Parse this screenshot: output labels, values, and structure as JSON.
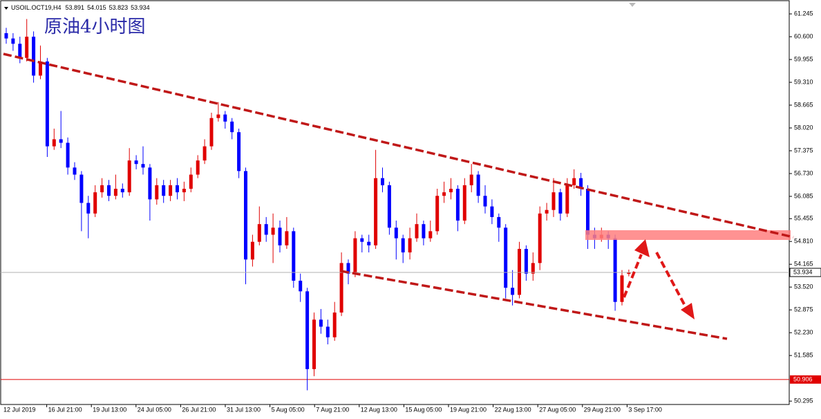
{
  "chart_data": {
    "type": "candlestick",
    "symbol": "USOIL.OCT19,H4",
    "title": "原油4小时图",
    "up_color": "#e00000",
    "down_color": "#0000ff",
    "ylim": [
      50.2,
      61.54
    ],
    "yticks": [
      61.245,
      {
        "value": 60.6,
        "label": "60.600"
      },
      59.955,
      {
        "value": 59.31,
        "label": "59.310"
      },
      58.665,
      {
        "value": 58.02,
        "label": "58.020"
      },
      57.375,
      {
        "value": 56.73,
        "label": "56.730"
      },
      56.085,
      55.455,
      {
        "value": 54.81,
        "label": "54.810"
      },
      54.165,
      {
        "value": 53.52,
        "label": "53.520"
      },
      52.875,
      {
        "value": 52.23,
        "label": "52.230"
      },
      51.585,
      50.295
    ],
    "level": 50.906,
    "x_labels": [
      "12 Jul 2019",
      "16 Jul 21:00",
      "19 Jul 13:00",
      "24 Jul 05:00",
      "26 Jul 21:00",
      "31 Jul 13:00",
      "5 Aug 05:00",
      "7 Aug 21:00",
      "12 Aug 13:00",
      "15 Aug 05:00",
      "19 Aug 21:00",
      "22 Aug 13:00",
      "27 Aug 05:00",
      "29 Aug 21:00",
      "3 Sep 17:00"
    ],
    "open": [
      60.7,
      60.55,
      60.4,
      60.0,
      60.6,
      59.5,
      59.9,
      57.5,
      57.7,
      57.6,
      56.9,
      56.7,
      55.9,
      55.6,
      56.2,
      56.4,
      56.1,
      56.3,
      56.2,
      57.1,
      57.0,
      56.9,
      56.0,
      56.4,
      56.1,
      56.4,
      56.2,
      56.3,
      56.7,
      57.1,
      57.5,
      58.3,
      58.4,
      58.2,
      57.9,
      56.8,
      54.3,
      54.8,
      55.3,
      55.0,
      55.2,
      54.7,
      55.1,
      53.7,
      53.4,
      51.2,
      52.6,
      52.4,
      52.1,
      52.8,
      54.2,
      53.9,
      54.9,
      54.8,
      54.7,
      56.6,
      56.4,
      55.2,
      54.9,
      54.5,
      54.9,
      55.3,
      54.9,
      55.1,
      56.1,
      56.2,
      56.3,
      55.4,
      56.4,
      56.7,
      56.1,
      55.8,
      55.5,
      55.2,
      53.5,
      53.3,
      54.6,
      53.9,
      54.2,
      55.6,
      55.7,
      56.2,
      55.6,
      56.4,
      56.6,
      56.3,
      55.0,
      54.9,
      55.0,
      54.9,
      53.1,
      53.891
    ],
    "high": [
      60.85,
      60.7,
      60.6,
      61.1,
      60.75,
      60.35,
      60.0,
      58.0,
      58.5,
      57.75,
      57.05,
      56.8,
      56.1,
      56.4,
      56.6,
      56.55,
      56.7,
      56.45,
      57.45,
      57.25,
      57.5,
      57.0,
      56.6,
      56.55,
      56.55,
      56.6,
      56.5,
      56.9,
      57.25,
      57.7,
      58.45,
      58.75,
      58.5,
      58.3,
      58.0,
      56.9,
      55.0,
      55.8,
      55.5,
      55.6,
      55.4,
      55.5,
      55.2,
      53.9,
      53.5,
      52.8,
      52.9,
      52.6,
      53.1,
      54.5,
      54.3,
      55.1,
      55.0,
      55.0,
      57.4,
      56.9,
      56.5,
      55.4,
      55.0,
      55.2,
      55.6,
      55.4,
      55.4,
      56.3,
      56.5,
      56.6,
      56.4,
      56.6,
      57.0,
      56.8,
      56.4,
      56.0,
      55.6,
      55.3,
      54.0,
      54.8,
      54.7,
      54.5,
      55.8,
      55.9,
      56.6,
      56.3,
      56.6,
      56.85,
      56.75,
      56.4,
      55.2,
      55.2,
      55.1,
      55.0,
      54.0,
      54.015
    ],
    "low": [
      60.4,
      60.2,
      59.85,
      59.9,
      59.3,
      59.4,
      57.2,
      57.4,
      57.45,
      56.7,
      56.55,
      55.1,
      54.9,
      55.5,
      56.05,
      55.95,
      56.0,
      56.05,
      56.1,
      56.85,
      56.7,
      55.4,
      55.85,
      55.9,
      55.95,
      56.0,
      55.95,
      56.2,
      56.6,
      57.0,
      57.4,
      58.2,
      58.0,
      57.7,
      56.6,
      53.6,
      54.1,
      54.7,
      54.8,
      54.2,
      54.5,
      54.6,
      53.5,
      53.1,
      50.6,
      51.0,
      52.2,
      51.9,
      52.0,
      52.7,
      53.6,
      53.8,
      54.5,
      54.5,
      54.6,
      56.2,
      55.0,
      54.3,
      54.2,
      54.3,
      54.8,
      54.7,
      54.8,
      55.0,
      55.9,
      56.0,
      55.1,
      55.3,
      56.2,
      55.9,
      55.6,
      55.3,
      54.8,
      53.2,
      53.0,
      53.2,
      53.7,
      53.7,
      54.0,
      55.4,
      55.5,
      55.4,
      55.5,
      56.3,
      56.1,
      54.6,
      54.6,
      54.8,
      54.6,
      52.85,
      53.0,
      53.823
    ],
    "close": [
      60.55,
      60.4,
      60.0,
      60.6,
      59.5,
      59.9,
      57.5,
      57.7,
      57.6,
      56.9,
      56.7,
      55.9,
      55.6,
      56.2,
      56.4,
      56.1,
      56.3,
      56.2,
      57.1,
      57.0,
      56.9,
      56.0,
      56.4,
      56.1,
      56.4,
      56.2,
      56.3,
      56.7,
      57.1,
      57.5,
      58.3,
      58.4,
      58.2,
      57.9,
      56.8,
      54.3,
      54.8,
      55.3,
      55.0,
      55.2,
      54.7,
      55.1,
      53.7,
      53.4,
      51.2,
      52.6,
      52.4,
      52.1,
      52.8,
      54.2,
      53.9,
      54.9,
      54.8,
      54.7,
      56.6,
      56.4,
      55.2,
      54.9,
      54.5,
      54.9,
      55.3,
      54.9,
      55.1,
      56.1,
      56.2,
      56.3,
      55.4,
      56.4,
      56.7,
      56.1,
      55.8,
      55.5,
      55.2,
      53.5,
      53.3,
      54.6,
      53.9,
      54.2,
      55.6,
      55.7,
      56.2,
      55.6,
      56.4,
      56.6,
      56.3,
      55.0,
      54.9,
      55.0,
      54.9,
      53.1,
      53.85,
      53.934
    ]
  }
}
